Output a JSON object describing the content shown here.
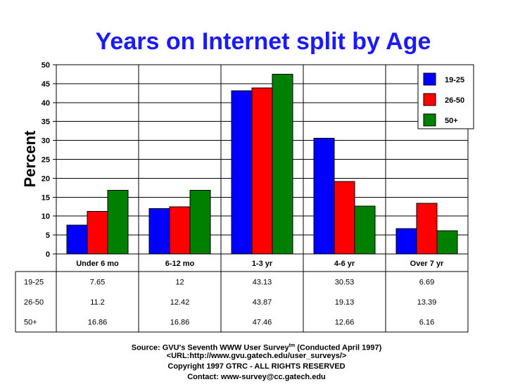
{
  "chart_data": {
    "type": "bar",
    "title": "Years on Internet split by Age",
    "ylabel": "Percent",
    "xlabel": "",
    "ylim": [
      0,
      50
    ],
    "yticks": [
      0,
      5,
      10,
      15,
      20,
      25,
      30,
      35,
      40,
      45,
      50
    ],
    "categories": [
      "Under 6 mo",
      "6-12 mo",
      "1-3 yr",
      "4-6 yr",
      "Over 7 yr"
    ],
    "series": [
      {
        "name": "19-25",
        "color": "#0000ff",
        "values": [
          7.65,
          12,
          43.13,
          30.53,
          6.69
        ]
      },
      {
        "name": "26-50",
        "color": "#ff0000",
        "values": [
          11.2,
          12.42,
          43.87,
          19.13,
          13.39
        ]
      },
      {
        "name": "50+",
        "color": "#008000",
        "values": [
          16.86,
          16.86,
          47.46,
          12.66,
          6.16
        ]
      }
    ],
    "table_display": [
      [
        "7.65",
        "12",
        "43.13",
        "30.53",
        "6.69"
      ],
      [
        "11.2",
        "12.42",
        "43.87",
        "19.13",
        "13.39"
      ],
      [
        "16.86",
        "16.86",
        "47.46",
        "12.66",
        "6.16"
      ]
    ],
    "grid": true,
    "legend_position": "top-right"
  },
  "footer": {
    "source_prefix": "Source: GVU's Seventh WWW User Survey",
    "source_sup": "tm",
    "source_suffix": " (Conducted April 1997)",
    "url": "<URL:http://www.gvu.gatech.edu/user_surveys/>",
    "copyright": "Copyright 1997 GTRC - ALL RIGHTS RESERVED",
    "contact": "Contact: www-survey@cc.gatech.edu"
  }
}
